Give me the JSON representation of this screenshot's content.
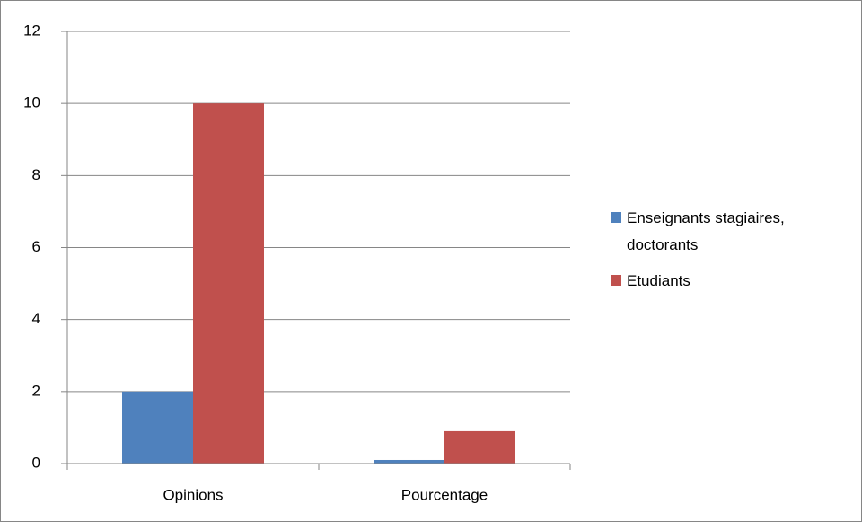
{
  "chart_data": {
    "type": "bar",
    "categories": [
      "Opinions",
      "Pourcentage"
    ],
    "series": [
      {
        "name": "Enseignants stagiaires, doctorants",
        "color": "#4f81bd",
        "values": [
          2,
          0.1
        ]
      },
      {
        "name": "Etudiants",
        "color": "#c0504d",
        "values": [
          10,
          0.9
        ]
      }
    ],
    "ylim": [
      0,
      12
    ],
    "yticks": [
      0,
      2,
      4,
      6,
      8,
      10,
      12
    ],
    "grid": true,
    "legend": "right"
  }
}
